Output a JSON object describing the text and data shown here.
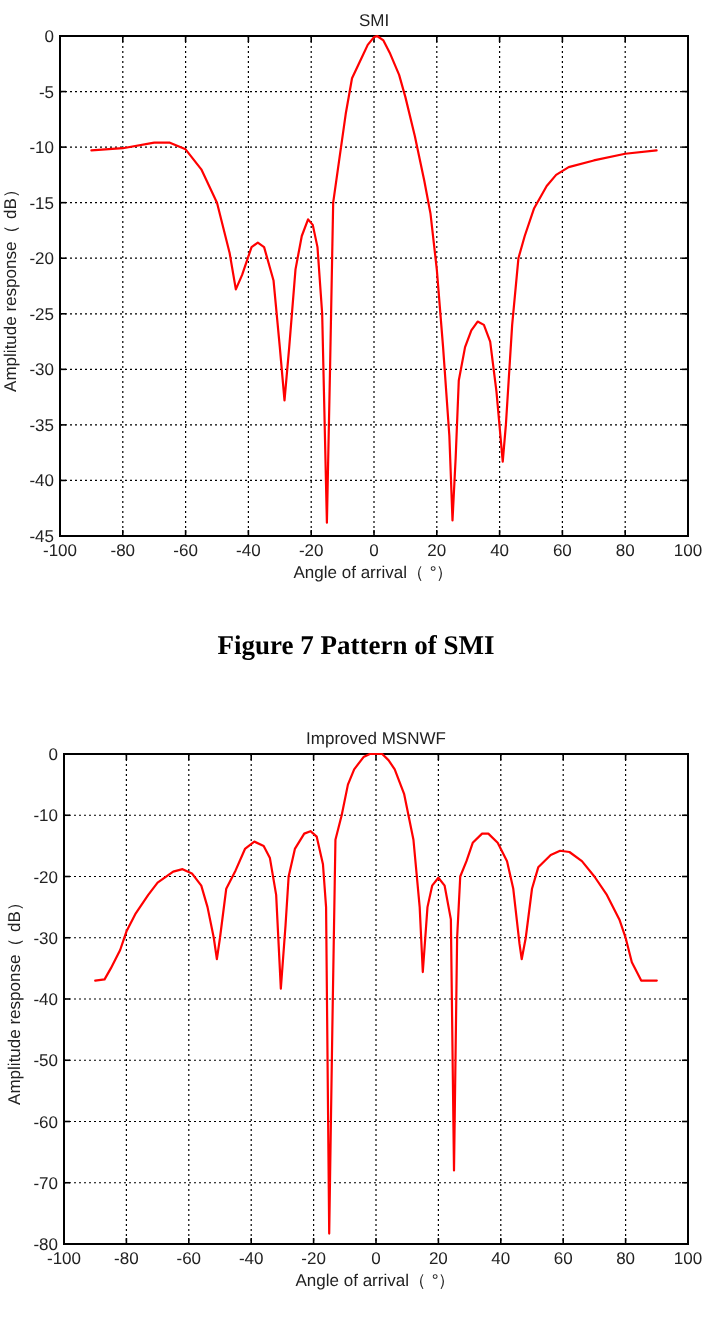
{
  "chart_data": [
    {
      "type": "line",
      "title": "SMI",
      "xlabel": "Angle of arrival（ °）",
      "ylabel": "Amplitude response（ dB）",
      "annotations": [
        "Figure 7  Pattern of SMI"
      ],
      "xlim": [
        -100,
        100
      ],
      "xticks": [
        -100,
        -80,
        -60,
        -40,
        -20,
        0,
        20,
        40,
        60,
        80,
        100
      ],
      "ylim": [
        -45,
        0
      ],
      "yticks": [
        -45,
        -40,
        -35,
        -30,
        -25,
        -20,
        -15,
        -10,
        -5,
        0
      ],
      "grid": true,
      "line_style": "solid",
      "x": [
        -90,
        -80,
        -70,
        -65,
        -60,
        -55,
        -50,
        -46,
        -44,
        -42,
        -39,
        -37,
        -35,
        -32,
        -30,
        -28.5,
        -27,
        -25,
        -23,
        -21,
        -19.5,
        -18,
        -16.5,
        -15,
        -14,
        -13,
        -11,
        -9,
        -7,
        -4,
        -2,
        0,
        1,
        3,
        5,
        8,
        10,
        13,
        16,
        18,
        20,
        22,
        24,
        25,
        26,
        27,
        29,
        31,
        33,
        35,
        37,
        39,
        41,
        42,
        44,
        46,
        48,
        51,
        55,
        58,
        62,
        70,
        80,
        90
      ],
      "series": [
        {
          "color": "#ff0000",
          "values": [
            -10.3,
            -10.1,
            -9.6,
            -9.6,
            -10.2,
            -12,
            -15,
            -19.5,
            -22.8,
            -21.5,
            -19,
            -18.6,
            -19,
            -22,
            -28,
            -32.8,
            -28,
            -21,
            -18,
            -16.5,
            -17,
            -19,
            -25,
            -43.8,
            -30,
            -15,
            -11,
            -7,
            -3.8,
            -2,
            -0.8,
            -0.1,
            0,
            -0.4,
            -1.5,
            -3.5,
            -5.5,
            -9,
            -13,
            -16,
            -21,
            -28,
            -36,
            -43.6,
            -38,
            -31,
            -28,
            -26.5,
            -25.7,
            -26,
            -27.5,
            -32,
            -38.3,
            -35,
            -26,
            -20,
            -18,
            -15.5,
            -13.5,
            -12.5,
            -11.8,
            -11.2,
            -10.6,
            -10.3
          ]
        }
      ]
    },
    {
      "type": "line",
      "title": "Improved MSNWF",
      "xlabel": "Angle of arrival（ °）",
      "ylabel": "Amplitude response（ dB）",
      "xlim": [
        -100,
        100
      ],
      "xticks": [
        -100,
        -80,
        -60,
        -40,
        -20,
        0,
        20,
        40,
        60,
        80,
        100
      ],
      "ylim": [
        -80,
        0
      ],
      "yticks": [
        -80,
        -70,
        -60,
        -50,
        -40,
        -30,
        -20,
        -10,
        0
      ],
      "grid": true,
      "line_style": "solid",
      "x": [
        -90,
        -87,
        -85,
        -82,
        -80,
        -77,
        -73,
        -70,
        -65,
        -62,
        -59,
        -56,
        -54,
        -52,
        -51,
        -50,
        -48,
        -45,
        -42,
        -39,
        -36,
        -34,
        -32,
        -30.5,
        -29,
        -28,
        -26,
        -23,
        -21,
        -19,
        -17,
        -16,
        -15,
        -14,
        -13,
        -11,
        -9,
        -7,
        -4,
        -2,
        2,
        4,
        6,
        9,
        12,
        14,
        15,
        16.5,
        18,
        20,
        22,
        24,
        25,
        26,
        27,
        29,
        31,
        34,
        36,
        39,
        42,
        44,
        46,
        46.7,
        48,
        50,
        52,
        56,
        59,
        62,
        66,
        70,
        74,
        78,
        80,
        82,
        85,
        90
      ],
      "series": [
        {
          "color": "#ff0000",
          "values": [
            -37,
            -36.8,
            -35,
            -32,
            -29,
            -26,
            -23,
            -21,
            -19.2,
            -18.8,
            -19.5,
            -21.5,
            -25,
            -30,
            -33.5,
            -30,
            -22,
            -19,
            -15.5,
            -14.3,
            -15,
            -17,
            -23,
            -38.3,
            -28,
            -20,
            -15.5,
            -13,
            -12.6,
            -13.5,
            -18,
            -25,
            -78.3,
            -45,
            -14,
            -10,
            -5,
            -2.5,
            -0.5,
            0,
            0,
            -1,
            -2.5,
            -6.5,
            -14,
            -25,
            -35.6,
            -25,
            -21.5,
            -20.2,
            -21.5,
            -27,
            -68,
            -30,
            -20,
            -17.5,
            -14.5,
            -13,
            -13,
            -14.5,
            -17.5,
            -22,
            -31,
            -33.5,
            -30,
            -22,
            -18.5,
            -16.5,
            -15.8,
            -16,
            -17.5,
            -20,
            -23,
            -27,
            -30,
            -34,
            -37,
            -37
          ]
        }
      ]
    }
  ]
}
